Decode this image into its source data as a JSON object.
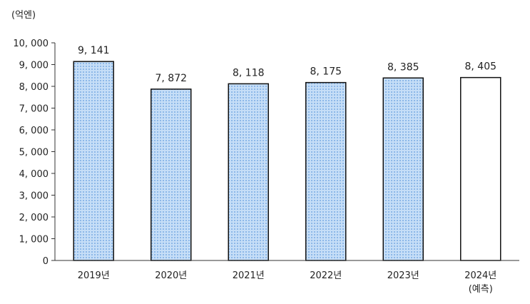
{
  "chart_data": {
    "type": "bar",
    "unit_label": "(억엔)",
    "categories": [
      "2019년",
      "2020년",
      "2021년",
      "2022년",
      "2023년",
      "2024년"
    ],
    "category_notes": [
      "",
      "",
      "",
      "",
      "",
      "(예측)"
    ],
    "values": [
      9141,
      7872,
      8118,
      8175,
      8385,
      8405
    ],
    "value_labels": [
      "9, 141",
      "7, 872",
      "8, 118",
      "8, 175",
      "8, 385",
      "8, 405"
    ],
    "forecast": [
      false,
      false,
      false,
      false,
      false,
      true
    ],
    "ylim": [
      0,
      10000
    ],
    "yticks": [
      0,
      1000,
      2000,
      3000,
      4000,
      5000,
      6000,
      7000,
      8000,
      9000,
      10000
    ],
    "ytick_labels": [
      "0",
      "1, 000",
      "2, 000",
      "3, 000",
      "4, 000",
      "5, 000",
      "6, 000",
      "7, 000",
      "8, 000",
      "9, 000",
      "10, 000"
    ],
    "grid": false,
    "bar_fill": "#c6def7",
    "bar_pattern": "#8db8e8",
    "bar_stroke": "#111111",
    "forecast_fill": "#ffffff"
  }
}
